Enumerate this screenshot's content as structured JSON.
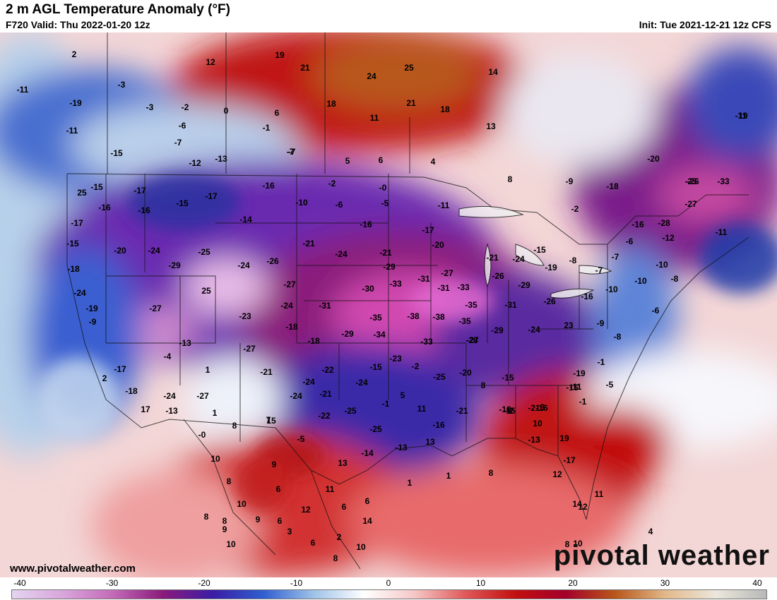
{
  "header": {
    "title": "2 m AGL Temperature Anomaly (°F)",
    "valid": "F720 Valid: Thu 2022-01-20 12z",
    "init": "Init: Tue 2021-12-21 12z CFS"
  },
  "footer": {
    "website": "www.pivotalweather.com",
    "brand": "pivotal weather"
  },
  "colorbar": {
    "ticks": [
      "-40",
      "-30",
      "-20",
      "-10",
      "0",
      "10",
      "20",
      "30",
      "40"
    ],
    "stops": [
      "#e4d4f0",
      "#d9a6dc",
      "#c46bb8",
      "#8a1a7a",
      "#3b1da6",
      "#2f5fd0",
      "#9fc3e8",
      "#ffffff",
      "#f6c7c7",
      "#e05a5a",
      "#c21010",
      "#a4002a",
      "#b8581a",
      "#e2b98a",
      "#ece7dc",
      "#b8b8b8"
    ]
  },
  "values": [
    "2",
    "12",
    "19",
    "21",
    "25",
    "24",
    "14",
    "-11",
    "-3",
    "-19",
    "-3",
    "-2",
    "0",
    "6",
    "18",
    "11",
    "21",
    "18",
    "-11",
    "-6",
    "-1",
    "13",
    "-7",
    "8",
    "-11",
    "19",
    "-15",
    "-7",
    "-12",
    "-13",
    "5",
    "6",
    "4",
    "-7",
    "-20",
    "25",
    "-25",
    "-9",
    "-18",
    "-26",
    "-33",
    "-15",
    "-17",
    "-16",
    "-2",
    "-0",
    "-27",
    "-16",
    "-15",
    "-17",
    "-16",
    "-10",
    "-6",
    "-5",
    "-11",
    "-2",
    "-16",
    "-28",
    "-17",
    "-14",
    "-16",
    "-17",
    "-11",
    "-15",
    "-20",
    "-24",
    "-25",
    "-21",
    "-21",
    "-20",
    "-12",
    "-6",
    "-7",
    "-18",
    "-29",
    "-24",
    "-26",
    "-24",
    "-29",
    "-31",
    "-27",
    "-21",
    "-24",
    "-15",
    "-19",
    "-8",
    "-10",
    "-24",
    "25",
    "-27",
    "-30",
    "-33",
    "-31",
    "-33",
    "-26",
    "-29",
    "-7",
    "-8",
    "-27",
    "-24",
    "-31",
    "-35",
    "-31",
    "-26",
    "-16",
    "-10",
    "-10",
    "-19",
    "-23",
    "-18",
    "-35",
    "-38",
    "-38",
    "-35",
    "-27",
    "-9",
    "-6",
    "-9",
    "-29",
    "-34",
    "-33",
    "-29",
    "-24",
    "23",
    "-18",
    "-28",
    "-8",
    "-13",
    "-4",
    "-27",
    "-23",
    "-15",
    "-2",
    "-1",
    "-19",
    "1",
    "-17",
    "-22",
    "-24",
    "-24",
    "-21",
    "-1",
    "5",
    "-11",
    "-5",
    "2",
    "-24",
    "-21",
    "-25",
    "-20",
    "8",
    "-15",
    "-16",
    "-18",
    "-27",
    "-24",
    "-25",
    "-16",
    "-21",
    "-15",
    "-1",
    "17",
    "-13",
    "11",
    "-21",
    "-15",
    "3",
    "1",
    "8",
    "15",
    "-22",
    "-25",
    "-16",
    "-2",
    "10",
    "-0",
    "7",
    "-5",
    "-13",
    "13",
    "-13",
    "19",
    "10",
    "9",
    "13",
    "-14",
    "-17",
    "14",
    "8",
    "8",
    "11",
    "1",
    "1",
    "12",
    "12",
    "10",
    "6",
    "12",
    "6",
    "6",
    "11",
    "8",
    "6",
    "14",
    "8",
    "4",
    "8",
    "9",
    "9",
    "3",
    "2",
    "10",
    "6",
    "10",
    "8",
    "10"
  ]
}
